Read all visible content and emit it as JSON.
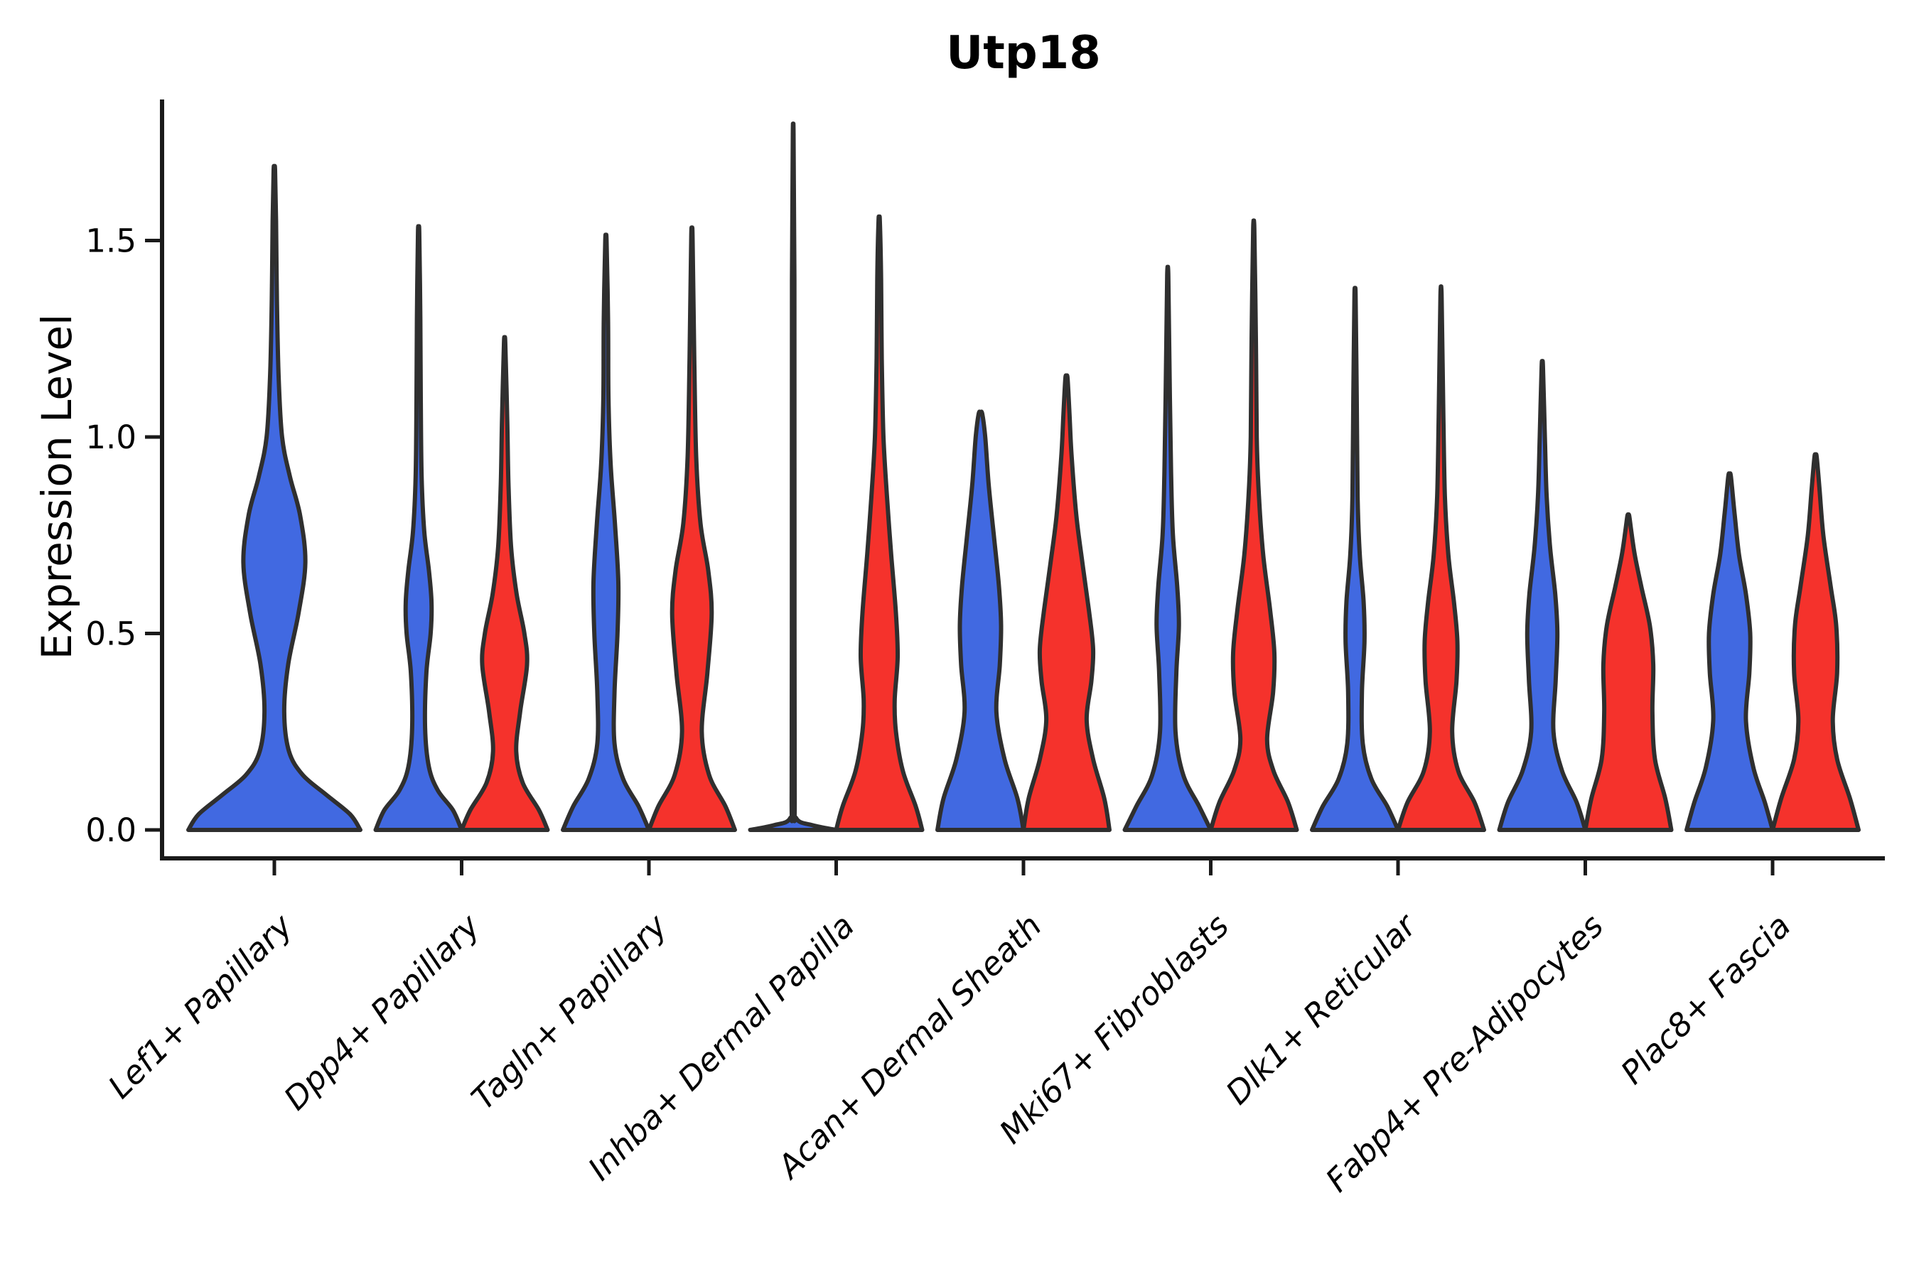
{
  "page": {
    "background": "#ffffff"
  },
  "chart_data": {
    "type": "violin",
    "title": "Utp18",
    "ylabel": "Expression Level",
    "xlabel": "",
    "grid": false,
    "legend": "none",
    "ylim": [
      0,
      1.85
    ],
    "ytick_labels": [
      "0.0",
      "0.5",
      "1.0",
      "1.5"
    ],
    "ytick_values": [
      0,
      0.5,
      1.0,
      1.5
    ],
    "categories": [
      "Lef1+ Papillary",
      "Dpp4+ Papillary",
      "Tagln+ Papillary",
      "Inhba+ Dermal Papilla",
      "Acan+ Dermal Sheath",
      "Mki67+ Fibroblasts",
      "Dlk1+ Reticular",
      "Fabp4+ Pre-Adipocytes",
      "Plac8+ Fascia"
    ],
    "colors": {
      "blue": "#4169E1",
      "red": "#F5322C",
      "edge": "#2F2F2F",
      "axis": "#1a1a1a"
    },
    "violins": [
      {
        "category_index": 0,
        "side": "center",
        "color": "blue",
        "width_factor": 2,
        "max": 1.68,
        "profile": [
          [
            0,
            1.0
          ],
          [
            0.04,
            0.88
          ],
          [
            0.09,
            0.6
          ],
          [
            0.14,
            0.33
          ],
          [
            0.2,
            0.17
          ],
          [
            0.3,
            0.115
          ],
          [
            0.42,
            0.16
          ],
          [
            0.55,
            0.28
          ],
          [
            0.68,
            0.36
          ],
          [
            0.8,
            0.3
          ],
          [
            0.9,
            0.18
          ],
          [
            1.0,
            0.09
          ],
          [
            1.15,
            0.05
          ],
          [
            1.35,
            0.03
          ],
          [
            1.55,
            0.02
          ],
          [
            1.68,
            0.008
          ]
        ]
      },
      {
        "category_index": 1,
        "side": "left",
        "color": "blue",
        "width_factor": 1,
        "max": 1.52,
        "profile": [
          [
            0,
            1.0
          ],
          [
            0.05,
            0.8
          ],
          [
            0.1,
            0.45
          ],
          [
            0.16,
            0.24
          ],
          [
            0.26,
            0.15
          ],
          [
            0.4,
            0.18
          ],
          [
            0.5,
            0.28
          ],
          [
            0.58,
            0.3
          ],
          [
            0.66,
            0.24
          ],
          [
            0.76,
            0.13
          ],
          [
            0.9,
            0.07
          ],
          [
            1.1,
            0.05
          ],
          [
            1.3,
            0.04
          ],
          [
            1.52,
            0.015
          ]
        ]
      },
      {
        "category_index": 1,
        "side": "right",
        "color": "red",
        "width_factor": 1,
        "max": 1.24,
        "profile": [
          [
            0,
            1.0
          ],
          [
            0.05,
            0.8
          ],
          [
            0.12,
            0.42
          ],
          [
            0.2,
            0.27
          ],
          [
            0.3,
            0.36
          ],
          [
            0.42,
            0.52
          ],
          [
            0.5,
            0.46
          ],
          [
            0.6,
            0.28
          ],
          [
            0.72,
            0.15
          ],
          [
            0.88,
            0.09
          ],
          [
            1.05,
            0.06
          ],
          [
            1.24,
            0.015
          ]
        ]
      },
      {
        "category_index": 2,
        "side": "left",
        "color": "blue",
        "width_factor": 1,
        "max": 1.5,
        "profile": [
          [
            0,
            1.0
          ],
          [
            0.06,
            0.76
          ],
          [
            0.13,
            0.4
          ],
          [
            0.22,
            0.2
          ],
          [
            0.35,
            0.2
          ],
          [
            0.5,
            0.27
          ],
          [
            0.63,
            0.29
          ],
          [
            0.78,
            0.21
          ],
          [
            0.93,
            0.11
          ],
          [
            1.1,
            0.06
          ],
          [
            1.3,
            0.05
          ],
          [
            1.5,
            0.015
          ]
        ]
      },
      {
        "category_index": 2,
        "side": "right",
        "color": "red",
        "width_factor": 1,
        "max": 1.51,
        "profile": [
          [
            0,
            1.0
          ],
          [
            0.06,
            0.78
          ],
          [
            0.14,
            0.4
          ],
          [
            0.25,
            0.23
          ],
          [
            0.4,
            0.36
          ],
          [
            0.55,
            0.46
          ],
          [
            0.66,
            0.38
          ],
          [
            0.78,
            0.2
          ],
          [
            0.95,
            0.1
          ],
          [
            1.2,
            0.055
          ],
          [
            1.51,
            0.015
          ]
        ]
      },
      {
        "category_index": 3,
        "side": "left",
        "color": "blue",
        "width_factor": 1,
        "max": 1.77,
        "profile": [
          [
            0,
            1.0
          ],
          [
            0.012,
            0.45
          ],
          [
            0.03,
            0.07
          ],
          [
            0.1,
            0.035
          ],
          [
            0.8,
            0.03
          ],
          [
            1.4,
            0.028
          ],
          [
            1.77,
            0.008
          ]
        ]
      },
      {
        "category_index": 3,
        "side": "right",
        "color": "red",
        "width_factor": 1,
        "max": 1.55,
        "profile": [
          [
            0,
            1.0
          ],
          [
            0.06,
            0.85
          ],
          [
            0.15,
            0.55
          ],
          [
            0.25,
            0.39
          ],
          [
            0.33,
            0.36
          ],
          [
            0.44,
            0.43
          ],
          [
            0.55,
            0.39
          ],
          [
            0.7,
            0.28
          ],
          [
            0.85,
            0.18
          ],
          [
            1.0,
            0.1
          ],
          [
            1.2,
            0.06
          ],
          [
            1.4,
            0.045
          ],
          [
            1.55,
            0.015
          ]
        ]
      },
      {
        "category_index": 4,
        "side": "left",
        "color": "blue",
        "width_factor": 1,
        "max": 1.06,
        "profile": [
          [
            0,
            1.0
          ],
          [
            0.08,
            0.86
          ],
          [
            0.18,
            0.56
          ],
          [
            0.3,
            0.37
          ],
          [
            0.42,
            0.45
          ],
          [
            0.52,
            0.48
          ],
          [
            0.62,
            0.43
          ],
          [
            0.75,
            0.31
          ],
          [
            0.88,
            0.19
          ],
          [
            1.0,
            0.11
          ],
          [
            1.06,
            0.04
          ]
        ]
      },
      {
        "category_index": 4,
        "side": "right",
        "color": "red",
        "width_factor": 1,
        "max": 1.15,
        "profile": [
          [
            0,
            1.0
          ],
          [
            0.08,
            0.88
          ],
          [
            0.18,
            0.62
          ],
          [
            0.28,
            0.47
          ],
          [
            0.38,
            0.58
          ],
          [
            0.46,
            0.62
          ],
          [
            0.56,
            0.52
          ],
          [
            0.68,
            0.37
          ],
          [
            0.8,
            0.23
          ],
          [
            0.95,
            0.12
          ],
          [
            1.06,
            0.07
          ],
          [
            1.15,
            0.025
          ]
        ]
      },
      {
        "category_index": 5,
        "side": "left",
        "color": "blue",
        "width_factor": 1,
        "max": 1.41,
        "profile": [
          [
            0,
            1.0
          ],
          [
            0.06,
            0.73
          ],
          [
            0.14,
            0.36
          ],
          [
            0.25,
            0.18
          ],
          [
            0.4,
            0.2
          ],
          [
            0.52,
            0.26
          ],
          [
            0.62,
            0.22
          ],
          [
            0.75,
            0.12
          ],
          [
            0.9,
            0.08
          ],
          [
            1.1,
            0.05
          ],
          [
            1.41,
            0.013
          ]
        ]
      },
      {
        "category_index": 5,
        "side": "right",
        "color": "red",
        "width_factor": 1,
        "max": 1.53,
        "profile": [
          [
            0,
            1.0
          ],
          [
            0.07,
            0.8
          ],
          [
            0.15,
            0.46
          ],
          [
            0.23,
            0.31
          ],
          [
            0.35,
            0.45
          ],
          [
            0.45,
            0.48
          ],
          [
            0.56,
            0.38
          ],
          [
            0.7,
            0.22
          ],
          [
            0.85,
            0.12
          ],
          [
            1.0,
            0.07
          ],
          [
            1.25,
            0.05
          ],
          [
            1.53,
            0.013
          ]
        ]
      },
      {
        "category_index": 6,
        "side": "left",
        "color": "blue",
        "width_factor": 1,
        "max": 1.36,
        "profile": [
          [
            0,
            1.0
          ],
          [
            0.06,
            0.75
          ],
          [
            0.13,
            0.38
          ],
          [
            0.22,
            0.18
          ],
          [
            0.35,
            0.16
          ],
          [
            0.48,
            0.22
          ],
          [
            0.58,
            0.2
          ],
          [
            0.7,
            0.11
          ],
          [
            0.85,
            0.06
          ],
          [
            1.1,
            0.04
          ],
          [
            1.36,
            0.013
          ]
        ]
      },
      {
        "category_index": 6,
        "side": "right",
        "color": "red",
        "width_factor": 1,
        "max": 1.36,
        "profile": [
          [
            0,
            1.0
          ],
          [
            0.07,
            0.78
          ],
          [
            0.15,
            0.4
          ],
          [
            0.25,
            0.26
          ],
          [
            0.38,
            0.36
          ],
          [
            0.48,
            0.38
          ],
          [
            0.58,
            0.3
          ],
          [
            0.7,
            0.17
          ],
          [
            0.85,
            0.09
          ],
          [
            1.05,
            0.055
          ],
          [
            1.36,
            0.013
          ]
        ]
      },
      {
        "category_index": 7,
        "side": "left",
        "color": "blue",
        "width_factor": 1,
        "max": 1.18,
        "profile": [
          [
            0,
            1.0
          ],
          [
            0.07,
            0.8
          ],
          [
            0.15,
            0.46
          ],
          [
            0.25,
            0.26
          ],
          [
            0.38,
            0.31
          ],
          [
            0.5,
            0.35
          ],
          [
            0.6,
            0.3
          ],
          [
            0.72,
            0.18
          ],
          [
            0.85,
            0.1
          ],
          [
            1.0,
            0.06
          ],
          [
            1.18,
            0.015
          ]
        ]
      },
      {
        "category_index": 7,
        "side": "right",
        "color": "red",
        "width_factor": 1,
        "max": 0.8,
        "profile": [
          [
            0,
            1.0
          ],
          [
            0.08,
            0.86
          ],
          [
            0.18,
            0.62
          ],
          [
            0.3,
            0.56
          ],
          [
            0.42,
            0.58
          ],
          [
            0.52,
            0.5
          ],
          [
            0.62,
            0.3
          ],
          [
            0.7,
            0.15
          ],
          [
            0.76,
            0.07
          ],
          [
            0.8,
            0.02
          ]
        ]
      },
      {
        "category_index": 8,
        "side": "left",
        "color": "blue",
        "width_factor": 1,
        "max": 0.9,
        "profile": [
          [
            0,
            1.0
          ],
          [
            0.07,
            0.82
          ],
          [
            0.16,
            0.55
          ],
          [
            0.28,
            0.38
          ],
          [
            0.4,
            0.46
          ],
          [
            0.5,
            0.48
          ],
          [
            0.6,
            0.38
          ],
          [
            0.7,
            0.22
          ],
          [
            0.8,
            0.12
          ],
          [
            0.9,
            0.03
          ]
        ]
      },
      {
        "category_index": 8,
        "side": "right",
        "color": "red",
        "width_factor": 1,
        "max": 0.95,
        "profile": [
          [
            0,
            1.0
          ],
          [
            0.08,
            0.8
          ],
          [
            0.18,
            0.5
          ],
          [
            0.28,
            0.4
          ],
          [
            0.4,
            0.5
          ],
          [
            0.52,
            0.48
          ],
          [
            0.62,
            0.35
          ],
          [
            0.75,
            0.18
          ],
          [
            0.87,
            0.09
          ],
          [
            0.95,
            0.025
          ]
        ]
      }
    ]
  }
}
